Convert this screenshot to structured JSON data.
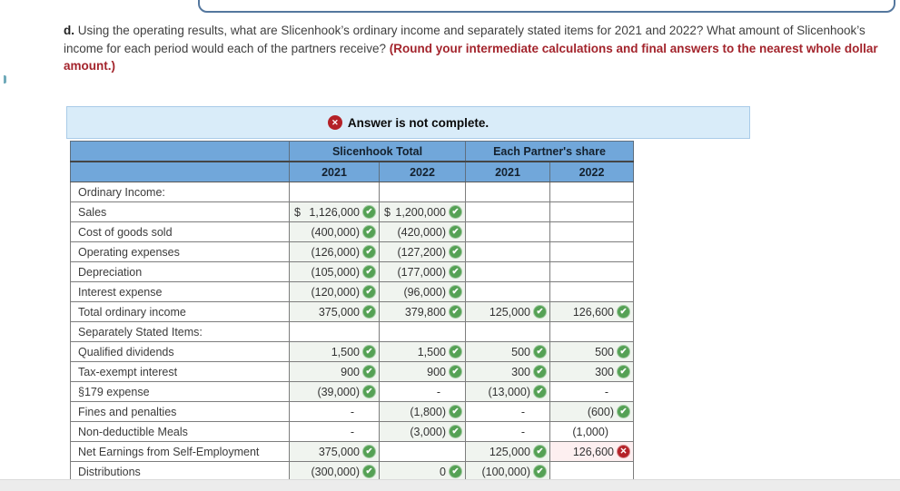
{
  "question": {
    "label": "d.",
    "text": " Using the operating results, what are Slicenhook’s ordinary income and separately stated items for 2021 and 2022? What amount of Slicenhook’s income for each period would each of the partners receive? ",
    "emphasis": "(Round your intermediate calculations and final answers to the nearest whole dollar amount.)"
  },
  "banner": {
    "icon": "x-circle-icon",
    "text": "Answer is not complete."
  },
  "table": {
    "column_groups": [
      {
        "label": "Slicenhook Total",
        "years": [
          "2021",
          "2022"
        ]
      },
      {
        "label": "Each Partner's share",
        "years": [
          "2021",
          "2022"
        ]
      }
    ],
    "rows": [
      {
        "label": "Ordinary Income:",
        "section": true,
        "cells": [
          null,
          null,
          null,
          null
        ]
      },
      {
        "label": "Sales",
        "cells": [
          {
            "prefix": "$",
            "v": "1,126,000",
            "icon": "check",
            "state": "answered"
          },
          {
            "prefix": "$",
            "v": "1,200,000",
            "icon": "check",
            "state": "answered"
          },
          null,
          null
        ]
      },
      {
        "label": "Cost of goods sold",
        "cells": [
          {
            "v": "(400,000)",
            "icon": "check",
            "state": "answered"
          },
          {
            "v": "(420,000)",
            "icon": "check",
            "state": "answered"
          },
          null,
          null
        ]
      },
      {
        "label": "Operating expenses",
        "cells": [
          {
            "v": "(126,000)",
            "icon": "check",
            "state": "answered"
          },
          {
            "v": "(127,200)",
            "icon": "check",
            "state": "answered"
          },
          null,
          null
        ]
      },
      {
        "label": "Depreciation",
        "cells": [
          {
            "v": "(105,000)",
            "icon": "check",
            "state": "answered"
          },
          {
            "v": "(177,000)",
            "icon": "check",
            "state": "answered"
          },
          null,
          null
        ]
      },
      {
        "label": "Interest expense",
        "cells": [
          {
            "v": "(120,000)",
            "icon": "check",
            "state": "answered"
          },
          {
            "v": "(96,000)",
            "icon": "check",
            "state": "answered"
          },
          null,
          null
        ]
      },
      {
        "label": "Total ordinary income",
        "cells": [
          {
            "v": "375,000",
            "icon": "check",
            "state": "answered"
          },
          {
            "v": "379,800",
            "icon": "check",
            "state": "answered"
          },
          {
            "v": "125,000",
            "icon": "check",
            "state": "answered"
          },
          {
            "v": "126,600",
            "icon": "check",
            "state": "answered"
          }
        ]
      },
      {
        "label": "Separately Stated Items:",
        "section": true,
        "cells": [
          null,
          null,
          null,
          null
        ]
      },
      {
        "label": "Qualified dividends",
        "cells": [
          {
            "v": "1,500",
            "icon": "check",
            "state": "answered"
          },
          {
            "v": "1,500",
            "icon": "check",
            "state": "answered"
          },
          {
            "v": "500",
            "icon": "check",
            "state": "answered"
          },
          {
            "v": "500",
            "icon": "check",
            "state": "answered"
          }
        ]
      },
      {
        "label": "Tax-exempt interest",
        "cells": [
          {
            "v": "900",
            "icon": "check",
            "state": "answered"
          },
          {
            "v": "900",
            "icon": "check",
            "state": "answered"
          },
          {
            "v": "300",
            "icon": "check",
            "state": "answered"
          },
          {
            "v": "300",
            "icon": "check",
            "state": "answered"
          }
        ]
      },
      {
        "label": "§179 expense",
        "cells": [
          {
            "v": "(39,000)",
            "icon": "check",
            "state": "answered"
          },
          {
            "v": "-",
            "state": "plain"
          },
          {
            "v": "(13,000)",
            "icon": "check",
            "state": "answered"
          },
          {
            "v": "-",
            "state": "plain"
          }
        ]
      },
      {
        "label": "Fines and penalties",
        "cells": [
          {
            "v": "-",
            "state": "plain"
          },
          {
            "v": "(1,800)",
            "icon": "check",
            "state": "answered"
          },
          {
            "v": "-",
            "state": "plain"
          },
          {
            "v": "(600)",
            "icon": "check",
            "state": "answered"
          }
        ]
      },
      {
        "label": "Non-deductible Meals",
        "cells": [
          {
            "v": "-",
            "state": "plain"
          },
          {
            "v": "(3,000)",
            "icon": "check",
            "state": "answered"
          },
          {
            "v": "-",
            "state": "plain"
          },
          {
            "v": "(1,000)",
            "state": "plain"
          }
        ]
      },
      {
        "label": "Net Earnings from Self-Employment",
        "cells": [
          {
            "v": "375,000",
            "icon": "check",
            "state": "answered"
          },
          null,
          {
            "v": "125,000",
            "icon": "check",
            "state": "answered"
          },
          {
            "v": "126,600",
            "icon": "x",
            "state": "wrong"
          }
        ]
      },
      {
        "label": "Distributions",
        "cells": [
          {
            "v": "(300,000)",
            "icon": "check",
            "state": "answered"
          },
          {
            "v": "0",
            "icon": "check",
            "state": "answered"
          },
          {
            "v": "(100,000)",
            "icon": "check",
            "state": "answered"
          },
          null
        ]
      }
    ]
  },
  "colors": {
    "header_blue": "#71a7da",
    "banner_bg": "#d9ecf9",
    "banner_border": "#a9cbe8",
    "check_green": "#55a155",
    "error_red": "#b42127",
    "answered_bg": "#f0f4ef",
    "wrong_bg": "#fdeff0",
    "emphasis_red": "#a3242c"
  }
}
